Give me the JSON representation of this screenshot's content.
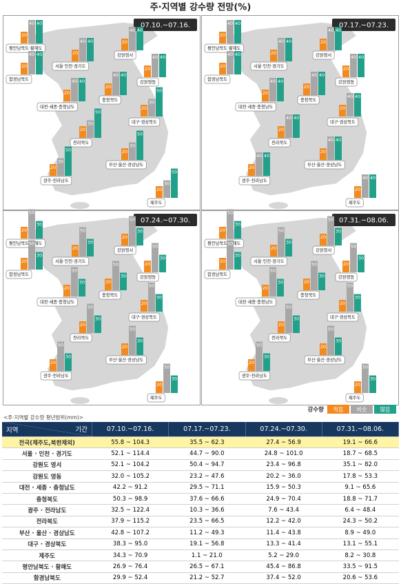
{
  "title": "주·지역별 강수량 전망(%)",
  "legend": {
    "title": "강수량",
    "items": [
      {
        "name": "적음",
        "color": "#f28a1e"
      },
      {
        "name": "비슷",
        "color": "#a7a7a7"
      },
      {
        "name": "많음",
        "color": "#23a08a"
      }
    ]
  },
  "panels": [
    {
      "period": "07.10.~07.16.",
      "regions": [
        {
          "name": "평안남북도·황해도",
          "values": [
            20,
            40,
            40
          ]
        },
        {
          "name": "함경남북도",
          "values": [
            20,
            40,
            40
          ]
        },
        {
          "name": "서울·인천·경기도",
          "values": [
            20,
            40,
            40
          ]
        },
        {
          "name": "강원영서",
          "values": [
            20,
            40,
            40
          ]
        },
        {
          "name": "강원영동",
          "values": [
            20,
            40,
            40
          ]
        },
        {
          "name": "대전·세종·충청남도",
          "values": [
            20,
            40,
            40
          ]
        },
        {
          "name": "충청북도",
          "values": [
            20,
            40,
            40
          ]
        },
        {
          "name": "대구·경상북도",
          "values": [
            20,
            30,
            50
          ]
        },
        {
          "name": "전라북도",
          "values": [
            20,
            30,
            50
          ]
        },
        {
          "name": "부산·울산·경상남도",
          "values": [
            20,
            30,
            50
          ]
        },
        {
          "name": "광주·전라남도",
          "values": [
            20,
            30,
            50
          ]
        },
        {
          "name": "제주도",
          "values": [
            20,
            30,
            50
          ]
        }
      ]
    },
    {
      "period": "07.17.~07.23.",
      "regions": [
        {
          "name": "평안남북도·황해도",
          "values": [
            20,
            40,
            40
          ]
        },
        {
          "name": "함경남북도",
          "values": [
            20,
            40,
            40
          ]
        },
        {
          "name": "서울·인천·경기도",
          "values": [
            20,
            40,
            40
          ]
        },
        {
          "name": "강원영서",
          "values": [
            20,
            40,
            40
          ]
        },
        {
          "name": "강원영동",
          "values": [
            20,
            40,
            40
          ]
        },
        {
          "name": "대전·세종·충청남도",
          "values": [
            20,
            40,
            40
          ]
        },
        {
          "name": "충청북도",
          "values": [
            20,
            40,
            40
          ]
        },
        {
          "name": "대구·경상북도",
          "values": [
            20,
            40,
            40
          ]
        },
        {
          "name": "전라북도",
          "values": [
            20,
            40,
            40
          ]
        },
        {
          "name": "부산·울산·경상남도",
          "values": [
            20,
            40,
            40
          ]
        },
        {
          "name": "광주·전라남도",
          "values": [
            20,
            40,
            40
          ]
        },
        {
          "name": "제주도",
          "values": [
            20,
            40,
            40
          ]
        }
      ]
    },
    {
      "period": "07.24.~07.30.",
      "regions": [
        {
          "name": "평안남북도·황해도",
          "values": [
            20,
            50,
            30
          ]
        },
        {
          "name": "함경남북도",
          "values": [
            20,
            50,
            30
          ]
        },
        {
          "name": "서울·인천·경기도",
          "values": [
            20,
            50,
            30
          ]
        },
        {
          "name": "강원영서",
          "values": [
            20,
            50,
            30
          ]
        },
        {
          "name": "강원영동",
          "values": [
            20,
            50,
            30
          ]
        },
        {
          "name": "대전·세종·충청남도",
          "values": [
            20,
            50,
            30
          ]
        },
        {
          "name": "충청북도",
          "values": [
            20,
            50,
            30
          ]
        },
        {
          "name": "대구·경상북도",
          "values": [
            20,
            50,
            30
          ]
        },
        {
          "name": "전라북도",
          "values": [
            20,
            50,
            30
          ]
        },
        {
          "name": "부산·울산·경상남도",
          "values": [
            20,
            50,
            30
          ]
        },
        {
          "name": "광주·전라남도",
          "values": [
            20,
            50,
            30
          ]
        },
        {
          "name": "제주도",
          "values": [
            20,
            50,
            30
          ]
        }
      ]
    },
    {
      "period": "07.31.~08.06.",
      "regions": [
        {
          "name": "평안남북도·황해도",
          "values": [
            20,
            50,
            30
          ]
        },
        {
          "name": "함경남북도",
          "values": [
            20,
            50,
            30
          ]
        },
        {
          "name": "서울·인천·경기도",
          "values": [
            20,
            50,
            30
          ]
        },
        {
          "name": "강원영서",
          "values": [
            20,
            50,
            30
          ]
        },
        {
          "name": "강원영동",
          "values": [
            20,
            50,
            30
          ]
        },
        {
          "name": "대전·세종·충청남도",
          "values": [
            20,
            50,
            30
          ]
        },
        {
          "name": "충청북도",
          "values": [
            20,
            50,
            30
          ]
        },
        {
          "name": "대구·경상북도",
          "values": [
            20,
            50,
            30
          ]
        },
        {
          "name": "전라북도",
          "values": [
            20,
            50,
            30
          ]
        },
        {
          "name": "부산·울산·경상남도",
          "values": [
            20,
            50,
            30
          ]
        },
        {
          "name": "광주·전라남도",
          "values": [
            20,
            50,
            30
          ]
        },
        {
          "name": "제주도",
          "values": [
            20,
            50,
            30
          ]
        }
      ]
    }
  ],
  "table": {
    "caption": "<주·지역별 강수량 평년범위(mm)>",
    "header_region": "지역",
    "header_period": "기간",
    "rows": [
      [
        "전국(제주도,북한제외)",
        "55.8 ~ 104.3",
        "35.5 ~ 62.3",
        "27.4 ~ 56.9",
        "19.1 ~ 66.6"
      ],
      [
        "서울 · 인천 · 경기도",
        "52.1 ~ 114.4",
        "44.7 ~ 90.0",
        "24.8 ~ 101.0",
        "18.7 ~ 68.5"
      ],
      [
        "강원도 영서",
        "52.1 ~ 104.2",
        "50.4 ~ 94.7",
        "23.4 ~ 96.8",
        "35.1 ~ 82.0"
      ],
      [
        "강원도 영동",
        "32.0 ~ 105.2",
        "23.2 ~ 47.6",
        "20.2 ~ 36.0",
        "17.8 ~ 53.3"
      ],
      [
        "대전 · 세종 · 충청남도",
        "42.2 ~ 91.2",
        "29.5 ~ 71.1",
        "15.9 ~ 50.3",
        "9.1 ~ 65.6"
      ],
      [
        "충청북도",
        "50.3 ~ 98.9",
        "37.6 ~ 66.6",
        "24.9 ~ 70.4",
        "18.8 ~ 71.7"
      ],
      [
        "광주 · 전라남도",
        "32.5 ~ 122.4",
        "10.3 ~ 36.6",
        "7.6 ~ 43.4",
        "6.4 ~ 48.4"
      ],
      [
        "전라북도",
        "37.9 ~ 115.2",
        "23.5 ~ 66.5",
        "12.2 ~ 42.0",
        "24.3 ~ 50.2"
      ],
      [
        "부산 · 울산 · 경상남도",
        "42.8 ~ 107.2",
        "11.2 ~ 49.3",
        "11.4 ~ 43.8",
        "8.9 ~ 49.0"
      ],
      [
        "대구 · 경상북도",
        "38.3 ~ 95.0",
        "19.1 ~ 56.8",
        "13.3 ~ 41.4",
        "13.1 ~ 55.1"
      ],
      [
        "제주도",
        "34.3 ~ 70.9",
        "1.1 ~ 21.0",
        "5.2 ~ 29.0",
        "8.2 ~ 30.8"
      ],
      [
        "평안남북도 · 황해도",
        "26.9 ~ 76.4",
        "26.5 ~ 67.1",
        "45.4 ~ 86.8",
        "33.5 ~ 91.5"
      ],
      [
        "함경남북도",
        "29.9 ~ 52.4",
        "21.2 ~ 52.7",
        "37.4 ~ 52.0",
        "20.6 ~ 53.6"
      ]
    ]
  }
}
